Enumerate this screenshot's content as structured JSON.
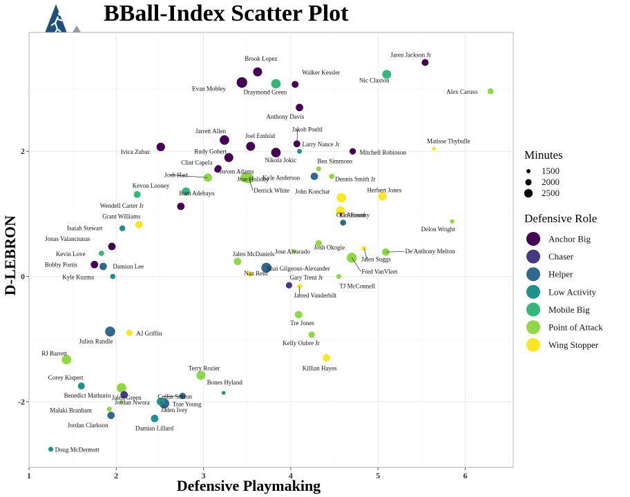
{
  "chart_data": {
    "type": "scatter",
    "title": "BBall-Index Scatter Plot",
    "xlabel": "Defensive Playmaking",
    "ylabel": "D-LEBRON",
    "xlim": [
      1.0,
      6.55
    ],
    "ylim": [
      -3.05,
      3.9
    ],
    "xticks": [
      "1",
      "2",
      "3",
      "4",
      "5",
      "6"
    ],
    "yticks": [
      "-2",
      "0",
      "2"
    ],
    "grid": true,
    "legend_position": "right",
    "size_legend": {
      "title": "Minutes",
      "entries": [
        {
          "label": "1500",
          "minutes": 1500
        },
        {
          "label": "2000",
          "minutes": 2000
        },
        {
          "label": "2500",
          "minutes": 2500
        }
      ]
    },
    "color_legend": {
      "title": "Defensive Role",
      "entries": [
        {
          "label": "Anchor Big",
          "color": "#440154"
        },
        {
          "label": "Chaser",
          "color": "#443a83"
        },
        {
          "label": "Helper",
          "color": "#31688e"
        },
        {
          "label": "Low Activity",
          "color": "#21918c"
        },
        {
          "label": "Mobile Big",
          "color": "#35b779"
        },
        {
          "label": "Point of Attack",
          "color": "#8fd744"
        },
        {
          "label": "Wing Stopper",
          "color": "#fde725"
        }
      ]
    },
    "labeled_points": [
      {
        "name": "Brook Lopez",
        "x": 3.62,
        "y": 3.27,
        "role": "Anchor Big",
        "minutes": 2300
      },
      {
        "name": "Jaren Jackson Jr",
        "x": 5.54,
        "y": 3.42,
        "role": "Anchor Big",
        "minutes": 1900
      },
      {
        "name": "Walker Kessler",
        "x": 4.05,
        "y": 3.07,
        "role": "Anchor Big",
        "minutes": 1900
      },
      {
        "name": "Nic Claxton",
        "x": 5.1,
        "y": 3.23,
        "role": "Mobile Big",
        "minutes": 2300
      },
      {
        "name": "Evan Mobley",
        "x": 3.44,
        "y": 3.1,
        "role": "Anchor Big",
        "minutes": 2600
      },
      {
        "name": "Draymond Green",
        "x": 3.83,
        "y": 3.08,
        "role": "Mobile Big",
        "minutes": 2400
      },
      {
        "name": "Alex Caruso",
        "x": 6.29,
        "y": 2.96,
        "role": "Point of Attack",
        "minutes": 1700
      },
      {
        "name": "Anthony Davis",
        "x": 4.1,
        "y": 2.7,
        "role": "Anchor Big",
        "minutes": 2000
      },
      {
        "name": "Jarrett Allen",
        "x": 3.24,
        "y": 2.18,
        "role": "Anchor Big",
        "minutes": 2400
      },
      {
        "name": "Joel Embiid",
        "x": 3.54,
        "y": 2.08,
        "role": "Anchor Big",
        "minutes": 2300
      },
      {
        "name": "Jakob Poeltl",
        "x": 4.07,
        "y": 2.12,
        "role": "Anchor Big",
        "minutes": 1900
      },
      {
        "name": "Larry Nance Jr",
        "x": 4.1,
        "y": 2.0,
        "role": "Low Activity",
        "minutes": 1500
      },
      {
        "name": "Mitchell Robinson",
        "x": 4.71,
        "y": 2.0,
        "role": "Anchor Big",
        "minutes": 1800
      },
      {
        "name": "Matisse Thybulle",
        "x": 5.64,
        "y": 2.04,
        "role": "Wing Stopper",
        "minutes": 1300
      },
      {
        "name": "Ivica Zubac",
        "x": 2.51,
        "y": 2.07,
        "role": "Anchor Big",
        "minutes": 2200
      },
      {
        "name": "Rudy Gobert",
        "x": 3.29,
        "y": 1.9,
        "role": "Anchor Big",
        "minutes": 2300
      },
      {
        "name": "Nikola Jokic",
        "x": 3.83,
        "y": 1.98,
        "role": "Anchor Big",
        "minutes": 2400
      },
      {
        "name": "Clint Capela",
        "x": 3.17,
        "y": 1.73,
        "role": "Anchor Big",
        "minutes": 1800
      },
      {
        "name": "Steven Adams",
        "x": 3.16,
        "y": 1.71,
        "role": "Anchor Big",
        "minutes": 1800
      },
      {
        "name": "Ben Simmons",
        "x": 4.32,
        "y": 1.72,
        "role": "Point of Attack",
        "minutes": 1500
      },
      {
        "name": "Josh Hart",
        "x": 3.05,
        "y": 1.58,
        "role": "Point of Attack",
        "minutes": 2200
      },
      {
        "name": "Jrue Holiday",
        "x": 3.48,
        "y": 1.58,
        "role": "Point of Attack",
        "minutes": 2500
      },
      {
        "name": "Kyle Anderson",
        "x": 4.27,
        "y": 1.6,
        "role": "Helper",
        "minutes": 2000
      },
      {
        "name": "Dennis Smith Jr",
        "x": 4.47,
        "y": 1.6,
        "role": "Point of Attack",
        "minutes": 1600
      },
      {
        "name": "Derrick White",
        "x": 3.52,
        "y": 1.57,
        "role": "Point of Attack",
        "minutes": 2500
      },
      {
        "name": "Kevon Looney",
        "x": 2.24,
        "y": 1.31,
        "role": "Mobile Big",
        "minutes": 1900
      },
      {
        "name": "Bam Adebayo",
        "x": 2.8,
        "y": 1.36,
        "role": "Mobile Big",
        "minutes": 2100
      },
      {
        "name": "John Konchar",
        "x": 4.58,
        "y": 1.26,
        "role": "Wing Stopper",
        "minutes": 2400
      },
      {
        "name": "Herbert Jones",
        "x": 5.05,
        "y": 1.28,
        "role": "Wing Stopper",
        "minutes": 2200
      },
      {
        "name": "Wendell Carter Jr",
        "x": 2.74,
        "y": 1.12,
        "role": "Anchor Big",
        "minutes": 2000
      },
      {
        "name": "OG Anunoby",
        "x": 4.57,
        "y": 1.05,
        "role": "Wing Stopper",
        "minutes": 2300
      },
      {
        "name": "Grant Williams",
        "x": 2.26,
        "y": 0.83,
        "role": "Wing Stopper",
        "minutes": 2000
      },
      {
        "name": "Tari Eason",
        "x": 4.6,
        "y": 0.86,
        "role": "Helper",
        "minutes": 1700
      },
      {
        "name": "Delon Wright",
        "x": 5.85,
        "y": 0.88,
        "role": "Point of Attack",
        "minutes": 1400
      },
      {
        "name": "Isaiah Stewart",
        "x": 2.07,
        "y": 0.77,
        "role": "Low Activity",
        "minutes": 1700
      },
      {
        "name": "Jonas Valanciunas",
        "x": 1.95,
        "y": 0.48,
        "role": "Anchor Big",
        "minutes": 2000
      },
      {
        "name": "Josh Okogie",
        "x": 4.32,
        "y": 0.53,
        "role": "Point of Attack",
        "minutes": 1800
      },
      {
        "name": "Kevin Love",
        "x": 1.83,
        "y": 0.37,
        "role": "Mobile Big",
        "minutes": 1600
      },
      {
        "name": "Jose Alvarado",
        "x": 4.04,
        "y": 0.4,
        "role": "Point of Attack",
        "minutes": 1400
      },
      {
        "name": "De'Anthony Melton",
        "x": 5.09,
        "y": 0.39,
        "role": "Point of Attack",
        "minutes": 2000
      },
      {
        "name": "Jalen Suggs",
        "x": 4.84,
        "y": 0.45,
        "role": "Wing Stopper",
        "minutes": 1500
      },
      {
        "name": "Bobby Portis",
        "x": 1.75,
        "y": 0.19,
        "role": "Anchor Big",
        "minutes": 2000
      },
      {
        "name": "Damion Lee",
        "x": 1.85,
        "y": 0.16,
        "role": "Helper",
        "minutes": 2000
      },
      {
        "name": "Jalen McDaniels",
        "x": 3.39,
        "y": 0.24,
        "role": "Point of Attack",
        "minutes": 2000
      },
      {
        "name": "Shai Gilgeous-Alexander",
        "x": 3.72,
        "y": 0.14,
        "role": "Helper",
        "minutes": 2500
      },
      {
        "name": "Fred VanVleet",
        "x": 4.7,
        "y": 0.3,
        "role": "Point of Attack",
        "minutes": 2500
      },
      {
        "name": "Kyle Kuzma",
        "x": 1.96,
        "y": 0.0,
        "role": "Low Activity",
        "minutes": 1600
      },
      {
        "name": "Naz Reid",
        "x": 3.53,
        "y": 0.04,
        "role": "Wing Stopper",
        "minutes": 1600
      },
      {
        "name": "Gary Trent Jr",
        "x": 3.98,
        "y": -0.14,
        "role": "Chaser",
        "minutes": 1800
      },
      {
        "name": "TJ McConnell",
        "x": 4.55,
        "y": 0.0,
        "role": "Point of Attack",
        "minutes": 1500
      },
      {
        "name": "Jarred Vanderbilt",
        "x": 4.1,
        "y": -0.16,
        "role": "Wing Stopper",
        "minutes": 1500
      },
      {
        "name": "Tre Jones",
        "x": 4.09,
        "y": -0.61,
        "role": "Point of Attack",
        "minutes": 2000
      },
      {
        "name": "AJ Griffin",
        "x": 2.15,
        "y": -0.9,
        "role": "Wing Stopper",
        "minutes": 1800
      },
      {
        "name": "Julius Randle",
        "x": 1.93,
        "y": -0.88,
        "role": "Helper",
        "minutes": 2500
      },
      {
        "name": "Kelly Oubre Jr",
        "x": 4.24,
        "y": -0.93,
        "role": "Point of Attack",
        "minutes": 1800
      },
      {
        "name": "RJ Barrett",
        "x": 1.43,
        "y": -1.33,
        "role": "Point of Attack",
        "minutes": 2400
      },
      {
        "name": "Killian Hayes",
        "x": 4.41,
        "y": -1.3,
        "role": "Wing Stopper",
        "minutes": 2000
      },
      {
        "name": "Terry Rozier",
        "x": 2.97,
        "y": -1.58,
        "role": "Point of Attack",
        "minutes": 2300
      },
      {
        "name": "Corey Kispert",
        "x": 1.6,
        "y": -1.75,
        "role": "Low Activity",
        "minutes": 1900
      },
      {
        "name": "Jalen Green",
        "x": 2.06,
        "y": -1.78,
        "role": "Point of Attack",
        "minutes": 2400
      },
      {
        "name": "Bones Hyland",
        "x": 3.23,
        "y": -1.86,
        "role": "Low Activity",
        "minutes": 1300
      },
      {
        "name": "Collin Sexton",
        "x": 2.76,
        "y": -1.91,
        "role": "Helper",
        "minutes": 1800
      },
      {
        "name": "Benedict Mathurin",
        "x": 2.09,
        "y": -1.89,
        "role": "Chaser",
        "minutes": 2000
      },
      {
        "name": "Trae Young",
        "x": 2.55,
        "y": -2.03,
        "role": "Helper",
        "minutes": 2500
      },
      {
        "name": "Malaki Branham",
        "x": 1.92,
        "y": -2.12,
        "role": "Point of Attack",
        "minutes": 1500
      },
      {
        "name": "Jordan Nwora",
        "x": 2.06,
        "y": -2.0,
        "role": "Point of Attack",
        "minutes": 1300
      },
      {
        "name": "Jaden Ivey",
        "x": 2.51,
        "y": -2.0,
        "role": "Low Activity",
        "minutes": 2100
      },
      {
        "name": "Jordan Clarkson",
        "x": 1.94,
        "y": -2.22,
        "role": "Helper",
        "minutes": 2000
      },
      {
        "name": "Damian Lillard",
        "x": 2.44,
        "y": -2.27,
        "role": "Low Activity",
        "minutes": 2000
      },
      {
        "name": "Doug McDermott",
        "x": 1.25,
        "y": -2.76,
        "role": "Low Activity",
        "minutes": 1500
      }
    ]
  }
}
